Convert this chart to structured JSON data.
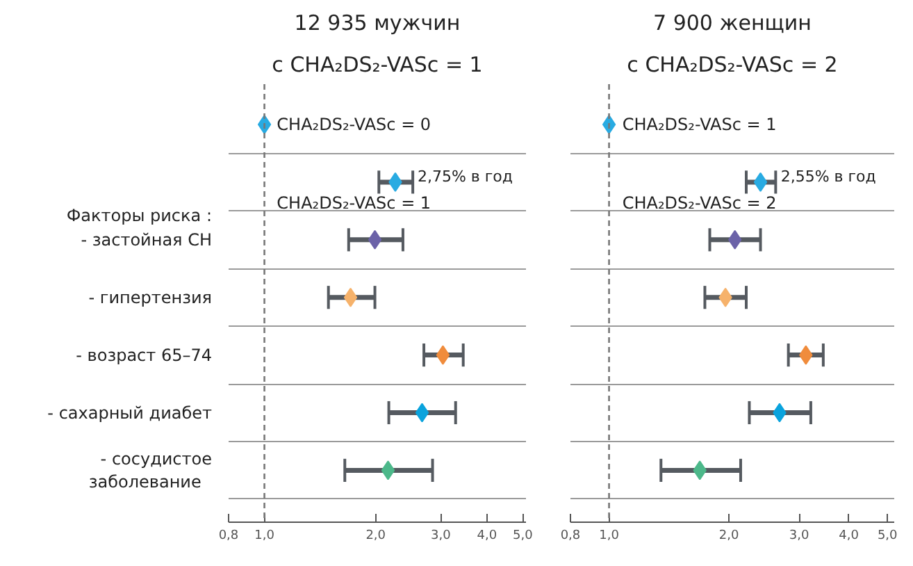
{
  "chart_data": [
    {
      "type": "scatter",
      "title": "12 935 мужчин",
      "subtitle": "с CHA₂DS₂-VASc = 1",
      "orientation": "horizontal",
      "log": "x",
      "marker": "diamond",
      "grid": "y",
      "tick_labels": "xy",
      "categories": [
        null,
        null,
        "- застойная СН",
        "- гипертензия",
        "- возраст 65–74",
        "- сахарный диабет",
        "- сосудистое заболевание"
      ],
      "values": [
        1.0,
        2.26,
        1.99,
        1.71,
        3.04,
        2.67,
        2.16
      ],
      "errors": [
        null,
        [
          2.04,
          2.52
        ],
        [
          1.69,
          2.37
        ],
        [
          1.49,
          1.99
        ],
        [
          2.7,
          3.45
        ],
        [
          2.17,
          3.29
        ],
        [
          1.65,
          2.85
        ]
      ],
      "colors": [
        "#29abe2",
        "#29abe2",
        "#6b62a8",
        "#f6b26b",
        "#f08c3c",
        "#0aa3dd",
        "#4cb88a"
      ],
      "xlim": [
        0.8,
        5.1
      ],
      "xticks": [
        {
          "value": 0.8,
          "label": "0,8"
        },
        {
          "value": 1.0,
          "label": "1,0"
        },
        {
          "value": 2.0,
          "label": "2,0"
        },
        {
          "value": 3.0,
          "label": "3,0"
        },
        {
          "value": 4.0,
          "label": "4,0"
        },
        {
          "value": 5.0,
          "label": "5,0"
        }
      ],
      "ref_lines": [
        {
          "axis": "x",
          "value": 1.0,
          "color": "#777777",
          "line_style": "dashed"
        }
      ],
      "annotations": [
        "CHA₂DS₂-VASc = 0",
        "2,75% в год",
        "CHA₂DS₂-VASc = 1",
        "Факторы риска :"
      ]
    },
    {
      "type": "scatter",
      "title": "7 900 женщин",
      "subtitle": "с CHA₂DS₂-VASc = 2",
      "orientation": "horizontal",
      "log": "x",
      "marker": "diamond",
      "grid": "y",
      "tick_labels": "x",
      "categories": [
        null,
        null,
        null,
        null,
        null,
        null,
        null
      ],
      "values": [
        1.0,
        2.4,
        2.07,
        1.96,
        3.12,
        2.68,
        1.69
      ],
      "errors": [
        null,
        [
          2.21,
          2.62
        ],
        [
          1.79,
          2.4
        ],
        [
          1.74,
          2.21
        ],
        [
          2.82,
          3.45
        ],
        [
          2.25,
          3.21
        ],
        [
          1.35,
          2.14
        ]
      ],
      "colors": [
        "#29abe2",
        "#29abe2",
        "#6b62a8",
        "#f6b26b",
        "#f08c3c",
        "#0aa3dd",
        "#4cb88a"
      ],
      "xlim": [
        0.8,
        5.2
      ],
      "xticks": [
        {
          "value": 0.8,
          "label": "0,8"
        },
        {
          "value": 1.0,
          "label": "1,0"
        },
        {
          "value": 2.0,
          "label": "2,0"
        },
        {
          "value": 3.0,
          "label": "3,0"
        },
        {
          "value": 4.0,
          "label": "4,0"
        },
        {
          "value": 5.0,
          "label": "5,0"
        }
      ],
      "ref_lines": [
        {
          "axis": "x",
          "value": 1.0,
          "color": "#777777",
          "line_style": "dashed"
        }
      ],
      "annotations": [
        "CHA₂DS₂-VASc = 1",
        "2,55% в год",
        "CHA₂DS₂-VASc = 2"
      ]
    }
  ]
}
